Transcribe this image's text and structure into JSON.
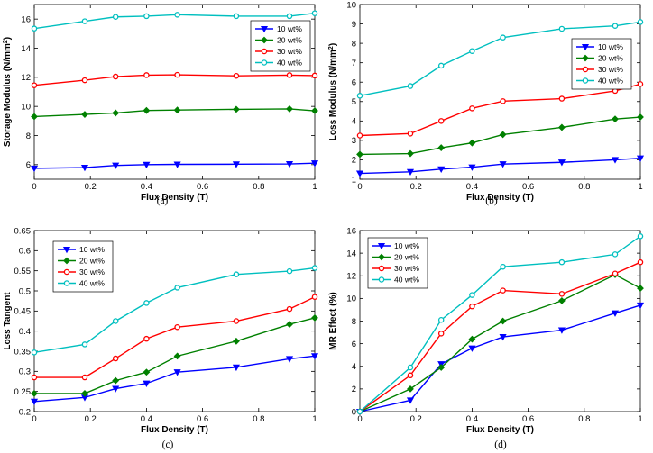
{
  "chart_data": [
    {
      "type": "line",
      "caption": "(a)",
      "xlabel": "Flux Density (T)",
      "ylabel": "Storage Modulus (N/mm",
      "ylabel_unit": "2",
      "ylabel_close": ")",
      "xlim": [
        0,
        1
      ],
      "ylim": [
        5,
        17
      ],
      "xticks": [
        0,
        0.2,
        0.4,
        0.6,
        0.8,
        1
      ],
      "yticks": [
        6,
        8,
        10,
        12,
        14,
        16
      ],
      "x": [
        0,
        0.18,
        0.29,
        0.4,
        0.51,
        0.72,
        0.91,
        1
      ],
      "legend": "top-right",
      "series": [
        {
          "name": "10 wt%",
          "color": "#0000ff",
          "marker": "triangle-down",
          "values": [
            5.75,
            5.8,
            5.95,
            6.0,
            6.02,
            6.03,
            6.05,
            6.1
          ]
        },
        {
          "name": "20 wt%",
          "color": "#008000",
          "marker": "diamond",
          "values": [
            9.3,
            9.45,
            9.55,
            9.72,
            9.75,
            9.8,
            9.83,
            9.7
          ]
        },
        {
          "name": "30 wt%",
          "color": "#ff0000",
          "marker": "circle",
          "values": [
            11.45,
            11.8,
            12.05,
            12.15,
            12.17,
            12.1,
            12.15,
            12.12
          ]
        },
        {
          "name": "40 wt%",
          "color": "#00bfbf",
          "marker": "circle",
          "values": [
            15.35,
            15.85,
            16.15,
            16.2,
            16.3,
            16.2,
            16.2,
            16.4
          ]
        }
      ]
    },
    {
      "type": "line",
      "caption": "(b)",
      "xlabel": "Flux Density (T)",
      "ylabel": "Loss Modulus (N/mm",
      "ylabel_unit": "2",
      "ylabel_close": ")",
      "xlim": [
        0,
        1
      ],
      "ylim": [
        1,
        10
      ],
      "xticks": [
        0,
        0.2,
        0.4,
        0.6,
        0.8,
        1
      ],
      "yticks": [
        1,
        2,
        3,
        4,
        5,
        6,
        7,
        8,
        9,
        10
      ],
      "x": [
        0,
        0.18,
        0.29,
        0.4,
        0.51,
        0.72,
        0.91,
        1
      ],
      "legend": "right",
      "series": [
        {
          "name": "10 wt%",
          "color": "#0000ff",
          "marker": "triangle-down",
          "values": [
            1.3,
            1.38,
            1.52,
            1.62,
            1.78,
            1.87,
            2.0,
            2.08
          ]
        },
        {
          "name": "20 wt%",
          "color": "#008000",
          "marker": "diamond",
          "values": [
            2.28,
            2.32,
            2.62,
            2.87,
            3.3,
            3.67,
            4.1,
            4.2
          ]
        },
        {
          "name": "30 wt%",
          "color": "#ff0000",
          "marker": "circle",
          "values": [
            3.25,
            3.35,
            4.0,
            4.65,
            5.02,
            5.15,
            5.55,
            5.9
          ]
        },
        {
          "name": "40 wt%",
          "color": "#00bfbf",
          "marker": "circle",
          "values": [
            5.3,
            5.8,
            6.85,
            7.6,
            8.3,
            8.75,
            8.9,
            9.1
          ]
        }
      ]
    },
    {
      "type": "line",
      "caption": "(c)",
      "xlabel": "Flux Density (T)",
      "ylabel": "Loss Tangent",
      "ylabel_unit": "",
      "ylabel_close": "",
      "xlim": [
        0,
        1
      ],
      "ylim": [
        0.2,
        0.65
      ],
      "xticks": [
        0,
        0.2,
        0.4,
        0.6,
        0.8,
        1
      ],
      "yticks": [
        0.2,
        0.25,
        0.3,
        0.35,
        0.4,
        0.45,
        0.5,
        0.55,
        0.6,
        0.65
      ],
      "x": [
        0,
        0.18,
        0.29,
        0.4,
        0.51,
        0.72,
        0.91,
        1
      ],
      "legend": "top-left",
      "series": [
        {
          "name": "10 wt%",
          "color": "#0000ff",
          "marker": "triangle-down",
          "values": [
            0.225,
            0.235,
            0.257,
            0.27,
            0.298,
            0.31,
            0.331,
            0.338
          ]
        },
        {
          "name": "20 wt%",
          "color": "#008000",
          "marker": "diamond",
          "values": [
            0.245,
            0.245,
            0.277,
            0.298,
            0.338,
            0.375,
            0.417,
            0.433
          ]
        },
        {
          "name": "30 wt%",
          "color": "#ff0000",
          "marker": "circle",
          "values": [
            0.285,
            0.285,
            0.332,
            0.381,
            0.41,
            0.425,
            0.455,
            0.485
          ]
        },
        {
          "name": "40 wt%",
          "color": "#00bfbf",
          "marker": "circle",
          "values": [
            0.347,
            0.367,
            0.425,
            0.47,
            0.508,
            0.541,
            0.549,
            0.557
          ]
        }
      ]
    },
    {
      "type": "line",
      "caption": "(d)",
      "xlabel": "Flux Density (T)",
      "ylabel": "MR Effect (%)",
      "ylabel_unit": "",
      "ylabel_close": "",
      "xlim": [
        0,
        1
      ],
      "ylim": [
        0,
        16
      ],
      "xticks": [
        0,
        0.2,
        0.4,
        0.6,
        0.8,
        1
      ],
      "yticks": [
        0,
        2,
        4,
        6,
        8,
        10,
        12,
        14,
        16
      ],
      "x": [
        0,
        0.18,
        0.29,
        0.4,
        0.51,
        0.72,
        0.91,
        1
      ],
      "legend": "top-left",
      "series": [
        {
          "name": "10 wt%",
          "color": "#0000ff",
          "marker": "triangle-down",
          "values": [
            0,
            1.0,
            4.2,
            5.6,
            6.6,
            7.2,
            8.7,
            9.4
          ]
        },
        {
          "name": "20 wt%",
          "color": "#008000",
          "marker": "diamond",
          "values": [
            0,
            2.0,
            3.9,
            6.4,
            8.0,
            9.8,
            12.1,
            10.9
          ]
        },
        {
          "name": "30 wt%",
          "color": "#ff0000",
          "marker": "circle",
          "values": [
            0,
            3.2,
            6.9,
            9.3,
            10.7,
            10.4,
            12.2,
            13.2
          ]
        },
        {
          "name": "40 wt%",
          "color": "#00bfbf",
          "marker": "circle",
          "values": [
            0,
            3.9,
            8.1,
            10.3,
            12.8,
            13.2,
            13.9,
            15.5
          ]
        }
      ]
    }
  ]
}
